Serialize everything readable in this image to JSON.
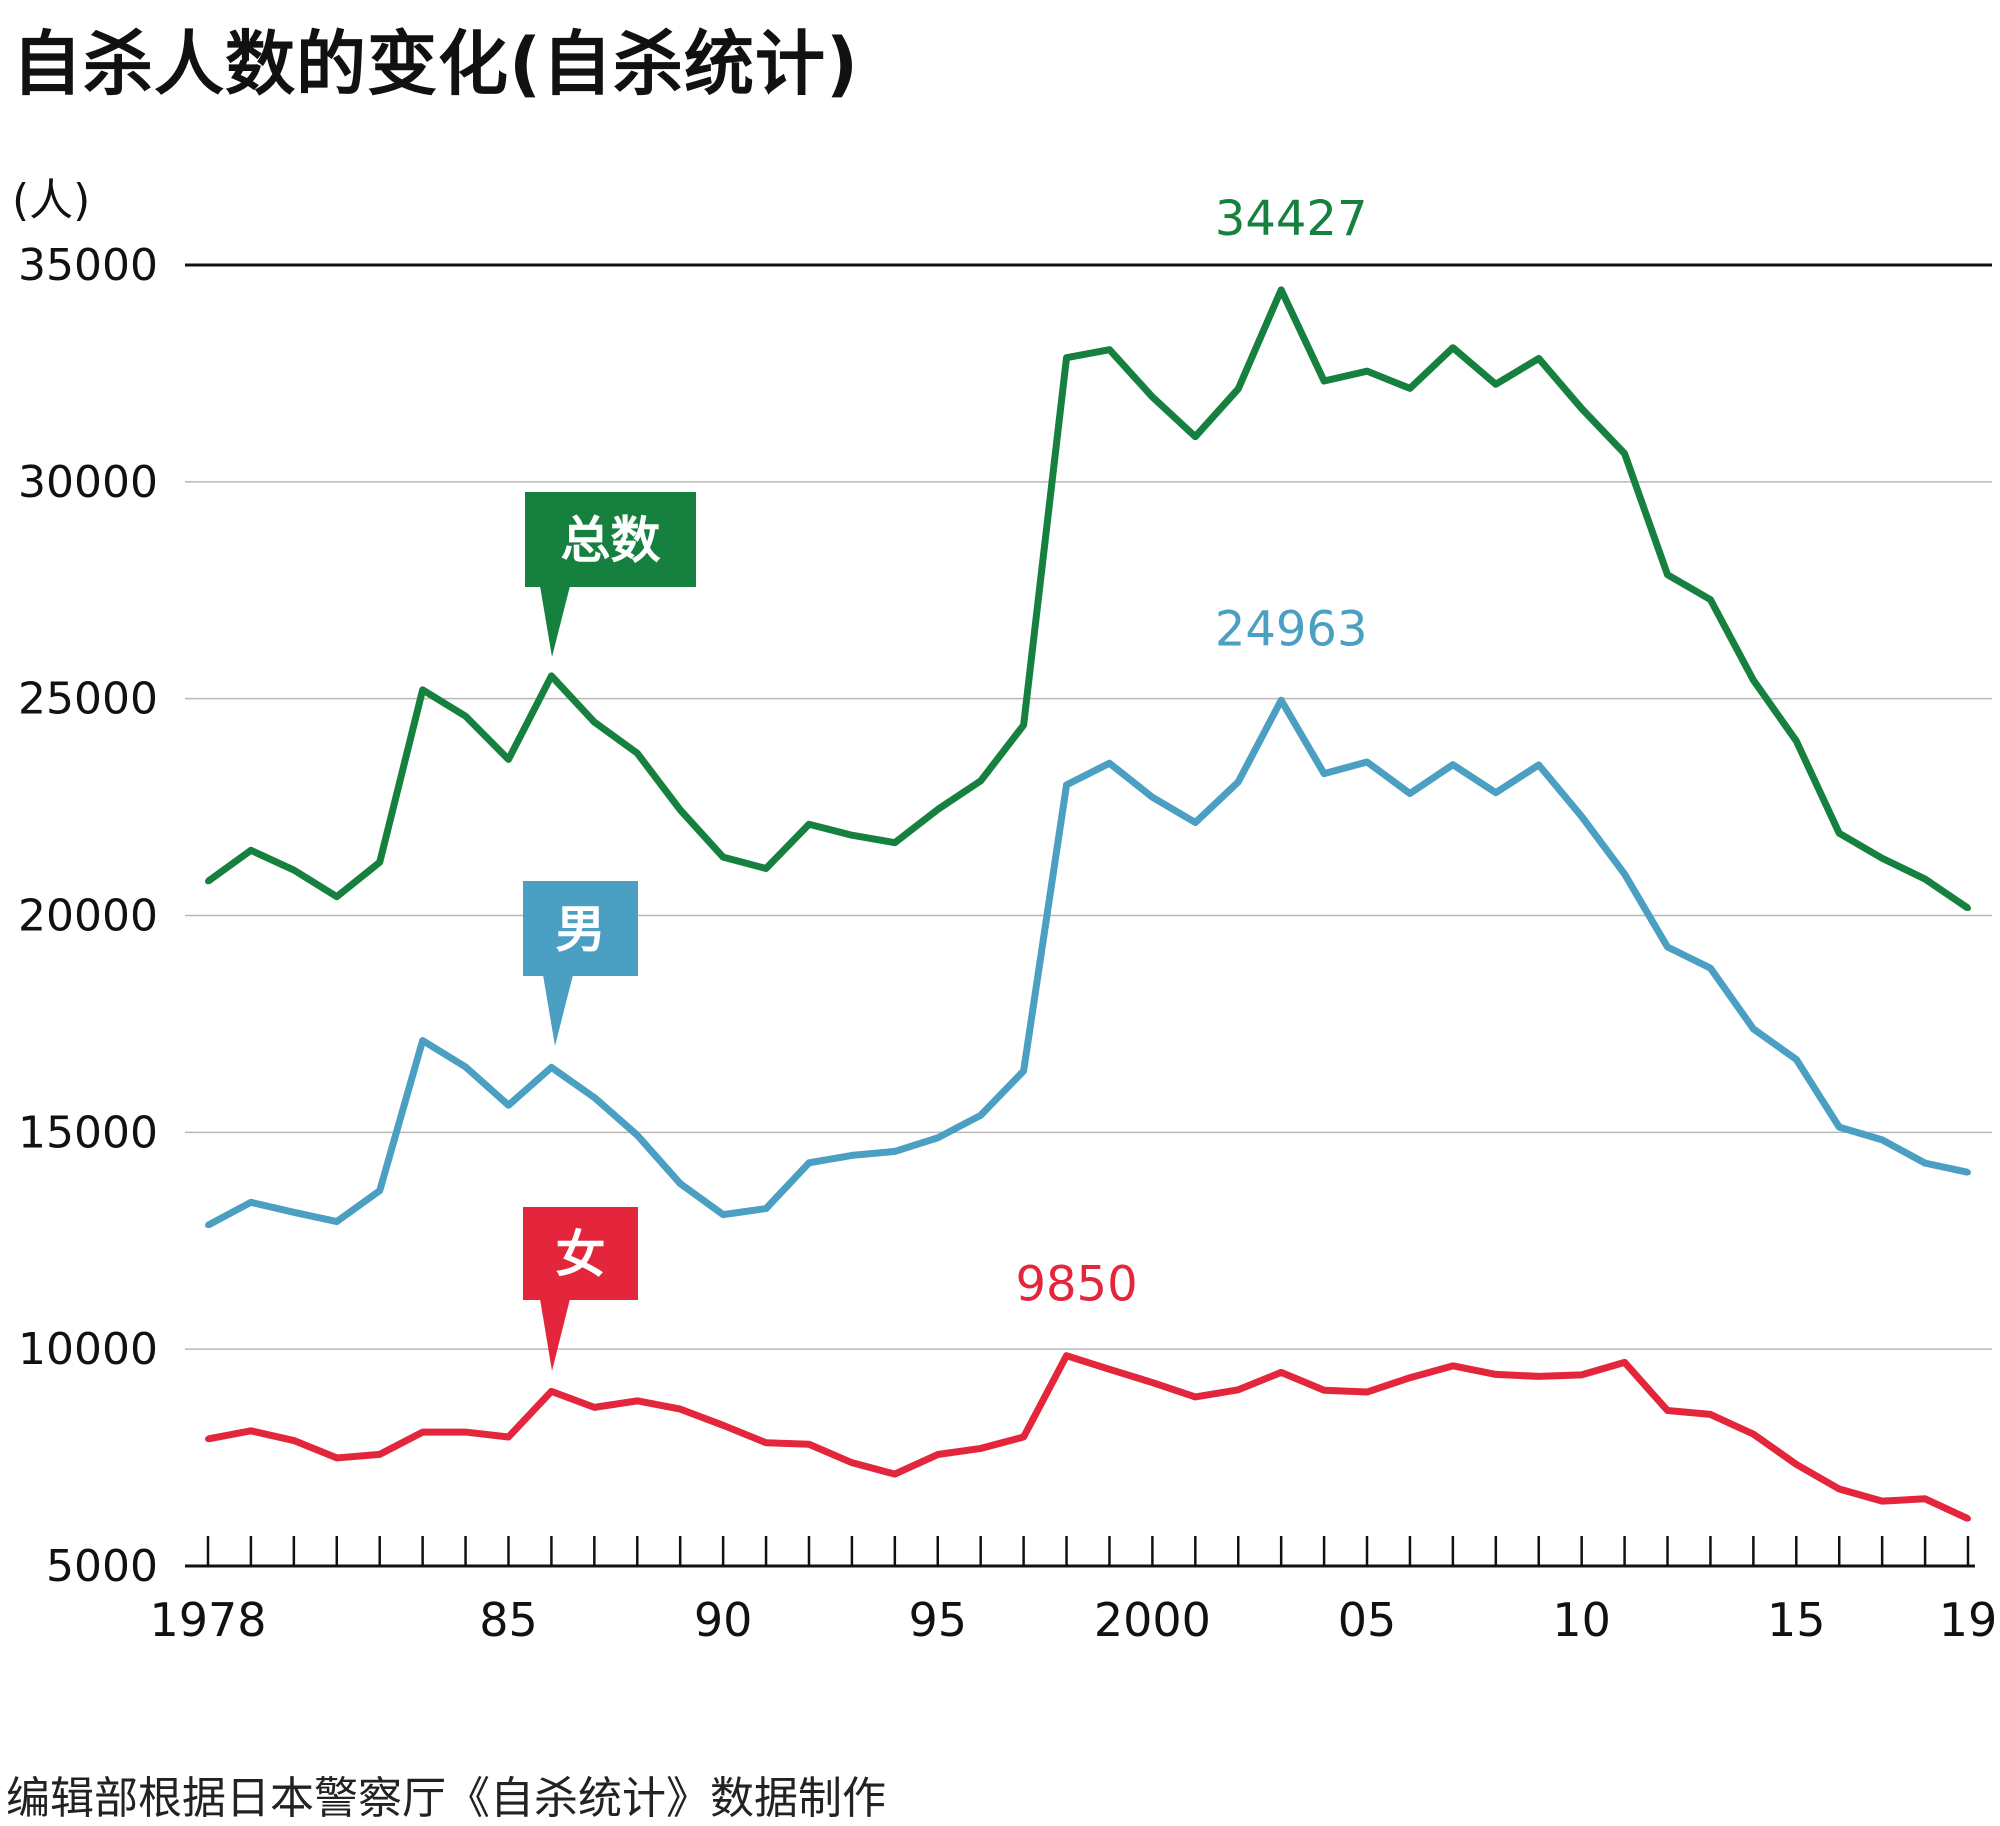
{
  "title": "自杀人数的变化(自杀统计)",
  "source_note": "编辑部根据日本警察厅《自杀统计》数据制作",
  "chart_data": {
    "type": "line",
    "title": "自杀人数的变化(自杀统计)",
    "ylabel": "(人)",
    "xlabel": "",
    "ylim": [
      5000,
      35000
    ],
    "yticks": [
      "5000",
      "10000",
      "15000",
      "20000",
      "25000",
      "30000",
      "35000"
    ],
    "xlim": [
      1978,
      2019
    ],
    "xtick_labels": [
      {
        "x": 1978,
        "label": "1978"
      },
      {
        "x": 1985,
        "label": "85"
      },
      {
        "x": 1990,
        "label": "90"
      },
      {
        "x": 1995,
        "label": "95"
      },
      {
        "x": 2000,
        "label": "2000"
      },
      {
        "x": 2005,
        "label": "05"
      },
      {
        "x": 2010,
        "label": "10"
      },
      {
        "x": 2015,
        "label": "15"
      },
      {
        "x": 2019,
        "label": "19"
      }
    ],
    "grid": true,
    "x": [
      1978,
      1979,
      1980,
      1981,
      1982,
      1983,
      1984,
      1985,
      1986,
      1987,
      1988,
      1989,
      1990,
      1991,
      1992,
      1993,
      1994,
      1995,
      1996,
      1997,
      1998,
      1999,
      2000,
      2001,
      2002,
      2003,
      2004,
      2005,
      2006,
      2007,
      2008,
      2009,
      2010,
      2011,
      2012,
      2013,
      2014,
      2015,
      2016,
      2017,
      2018,
      2019
    ],
    "series": [
      {
        "name": "总数",
        "color": "#16803f",
        "peak": {
          "x": 2003,
          "label": "34427"
        },
        "values": [
          20788,
          21503,
          21048,
          20434,
          21228,
          25202,
          24596,
          23599,
          25524,
          24460,
          23742,
          22436,
          21346,
          21084,
          22104,
          21851,
          21679,
          22445,
          23104,
          24391,
          32863,
          33048,
          31957,
          31042,
          32143,
          34427,
          32325,
          32552,
          32155,
          33093,
          32249,
          32845,
          31690,
          30651,
          27858,
          27283,
          25427,
          24025,
          21897,
          21321,
          20840,
          20169
        ]
      },
      {
        "name": "男",
        "color": "#4a9fc2",
        "peak": {
          "x": 2003,
          "label": "24963"
        },
        "values": [
          12859,
          13386,
          13155,
          12942,
          13654,
          17116,
          16508,
          15624,
          16497,
          15802,
          14934,
          13818,
          13102,
          13242,
          14296,
          14468,
          14560,
          14874,
          15393,
          16416,
          23013,
          23512,
          22727,
          22144,
          23080,
          24963,
          23272,
          23540,
          22813,
          23478,
          22831,
          23472,
          22283,
          20955,
          19273,
          18787,
          17386,
          16681,
          15121,
          14826,
          14290,
          14078
        ]
      },
      {
        "name": "女",
        "color": "#e3263b",
        "peak": {
          "x": 1998,
          "label": "9850"
        },
        "values": [
          7929,
          8117,
          7893,
          7492,
          7574,
          8086,
          8088,
          7975,
          9027,
          8658,
          8808,
          8618,
          8244,
          7842,
          7808,
          7383,
          7119,
          7571,
          7711,
          7975,
          9850,
          9536,
          9230,
          8898,
          9063,
          9464,
          9053,
          9012,
          9342,
          9615,
          9418,
          9373,
          9407,
          9696,
          8585,
          8496,
          8041,
          7344,
          6776,
          6495,
          6550,
          6091
        ]
      }
    ]
  }
}
